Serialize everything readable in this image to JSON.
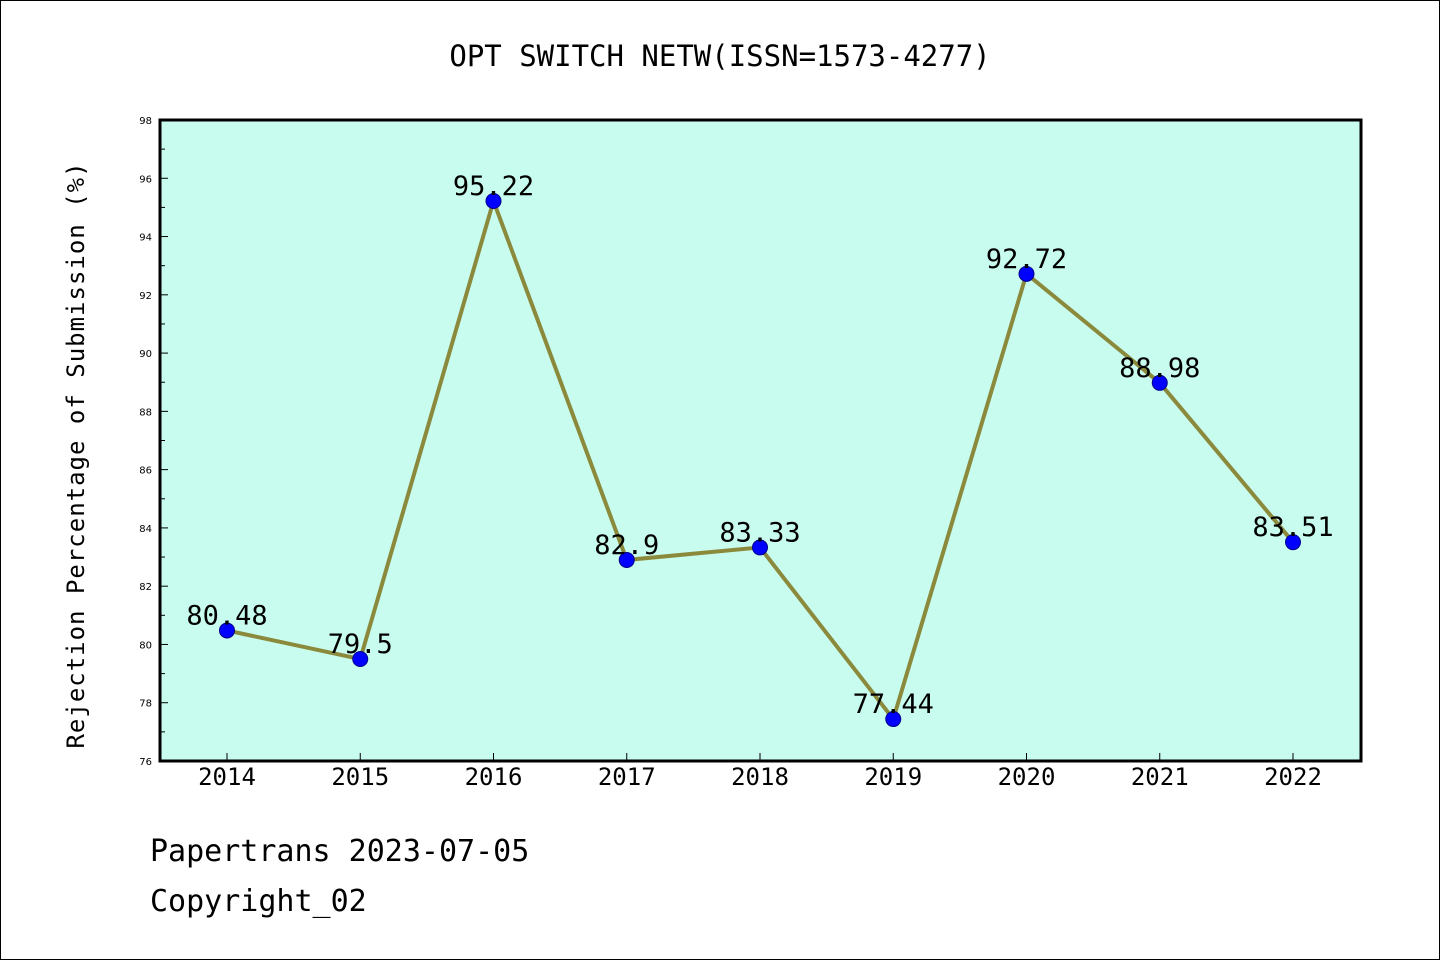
{
  "chart_data": {
    "type": "line",
    "title": "OPT SWITCH NETW(ISSN=1573-4277)",
    "xlabel": "",
    "ylabel": "Rejection Percentage of Submission (%)",
    "categories": [
      "2014",
      "2015",
      "2016",
      "2017",
      "2018",
      "2019",
      "2020",
      "2021",
      "2022"
    ],
    "values": [
      80.48,
      79.5,
      95.22,
      82.9,
      83.33,
      77.44,
      92.72,
      88.98,
      83.51
    ],
    "data_labels": [
      "80.48",
      "79.5",
      "95.22",
      "82.9",
      "83.33",
      "77.44",
      "92.72",
      "88.98",
      "83.51"
    ],
    "ylim": [
      76,
      98
    ],
    "yticks": [
      "76",
      "78",
      "80",
      "82",
      "84",
      "86",
      "88",
      "90",
      "92",
      "94",
      "96",
      "98"
    ],
    "grid": false,
    "legend": "none",
    "colors": {
      "plot_background": "#c8fcee",
      "line": "#8b8a3c",
      "marker": "#0000ff",
      "marker_edge": "#00008b"
    }
  },
  "footer": {
    "line1": "Papertrans 2023-07-05",
    "line2": "Copyright_02"
  }
}
